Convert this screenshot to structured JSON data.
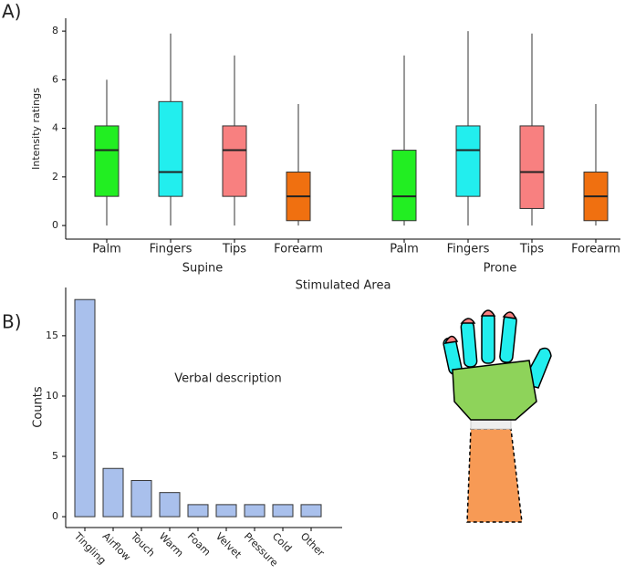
{
  "chart_data": [
    {
      "type": "box",
      "label": "A)",
      "y_label": "Intensity ratings",
      "x_label": "Stimulated Area",
      "categories": [
        "Palm",
        "Fingers",
        "Tips",
        "Forearm"
      ],
      "colors": [
        "#22ee22",
        "#22eeee",
        "#f88080",
        "#f07010"
      ],
      "series": [
        {
          "name": "Supine",
          "boxes": [
            {
              "low": 0,
              "q1": 1.2,
              "median": 3.1,
              "q3": 4.1,
              "high": 6.0
            },
            {
              "low": 0,
              "q1": 1.2,
              "median": 2.2,
              "q3": 5.1,
              "high": 7.9
            },
            {
              "low": 0,
              "q1": 1.2,
              "median": 3.1,
              "q3": 4.1,
              "high": 7.0
            },
            {
              "low": 0,
              "q1": 0.2,
              "median": 1.2,
              "q3": 2.2,
              "high": 5.0
            }
          ]
        },
        {
          "name": "Prone",
          "boxes": [
            {
              "low": 0,
              "q1": 0.2,
              "median": 1.2,
              "q3": 3.1,
              "high": 7.0
            },
            {
              "low": 0,
              "q1": 1.2,
              "median": 3.1,
              "q3": 4.1,
              "high": 8.0
            },
            {
              "low": 0,
              "q1": 0.7,
              "median": 2.2,
              "q3": 4.1,
              "high": 7.9
            },
            {
              "low": 0,
              "q1": 0.2,
              "median": 1.2,
              "q3": 2.2,
              "high": 5.0
            }
          ]
        }
      ],
      "ylim": [
        -0.56,
        8.53
      ],
      "yticks": [
        0,
        2,
        4,
        6,
        8
      ]
    },
    {
      "type": "bar",
      "label": "B)",
      "y_label": "Counts",
      "annotation": "Verbal description",
      "categories": [
        "Tingling",
        "Airflow",
        "Touch",
        "Warm",
        "Foam",
        "Velvet",
        "Pressure",
        "Cold",
        "Other"
      ],
      "values": [
        18,
        4,
        3,
        2,
        1,
        1,
        1,
        1,
        1
      ],
      "color": "#a9c0ec",
      "ylim": [
        -0.9,
        19
      ],
      "yticks": [
        0,
        5,
        10,
        15
      ]
    }
  ]
}
